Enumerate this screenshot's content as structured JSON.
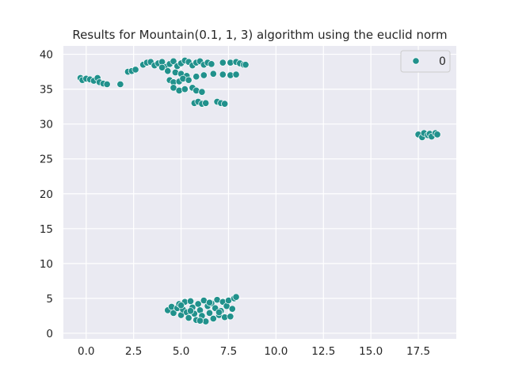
{
  "chart_data": {
    "type": "scatter",
    "title": "Results for Mountain(0.1, 1, 3) algorithm using the euclid norm",
    "xlabel": "",
    "ylabel": "",
    "xlim": [
      -1.2,
      19.5
    ],
    "ylim": [
      -0.8,
      41.2
    ],
    "xticks": [
      0.0,
      2.5,
      5.0,
      7.5,
      10.0,
      12.5,
      15.0,
      17.5
    ],
    "xtick_labels": [
      "0.0",
      "2.5",
      "5.0",
      "7.5",
      "10.0",
      "12.5",
      "15.0",
      "17.5"
    ],
    "yticks": [
      0,
      5,
      10,
      15,
      20,
      25,
      30,
      35,
      40
    ],
    "ytick_labels": [
      "0",
      "5",
      "10",
      "15",
      "20",
      "25",
      "30",
      "35",
      "40"
    ],
    "grid": true,
    "legend": {
      "placement": "top-right",
      "entries": [
        "0"
      ]
    },
    "series": [
      {
        "name": "0",
        "color": "#21918c",
        "points": [
          [
            -0.3,
            36.6
          ],
          [
            -0.2,
            36.3
          ],
          [
            0.0,
            36.5
          ],
          [
            0.2,
            36.4
          ],
          [
            0.4,
            36.2
          ],
          [
            0.6,
            36.6
          ],
          [
            0.7,
            36.0
          ],
          [
            0.9,
            35.8
          ],
          [
            1.1,
            35.7
          ],
          [
            1.8,
            35.7
          ],
          [
            2.2,
            37.5
          ],
          [
            2.4,
            37.6
          ],
          [
            2.6,
            37.8
          ],
          [
            3.0,
            38.5
          ],
          [
            3.2,
            38.8
          ],
          [
            3.4,
            38.9
          ],
          [
            3.6,
            38.4
          ],
          [
            3.8,
            38.7
          ],
          [
            4.0,
            38.9
          ],
          [
            4.2,
            38.2
          ],
          [
            4.4,
            38.6
          ],
          [
            4.6,
            39.0
          ],
          [
            4.8,
            38.3
          ],
          [
            5.0,
            38.7
          ],
          [
            5.2,
            39.1
          ],
          [
            5.4,
            38.9
          ],
          [
            5.6,
            38.4
          ],
          [
            5.8,
            38.8
          ],
          [
            6.0,
            39.0
          ],
          [
            6.2,
            38.5
          ],
          [
            6.4,
            38.8
          ],
          [
            6.6,
            38.6
          ],
          [
            7.2,
            38.8
          ],
          [
            7.6,
            38.8
          ],
          [
            7.9,
            38.9
          ],
          [
            8.1,
            38.7
          ],
          [
            8.3,
            38.5
          ],
          [
            8.4,
            38.5
          ],
          [
            4.0,
            38.1
          ],
          [
            4.3,
            37.6
          ],
          [
            4.7,
            37.4
          ],
          [
            5.0,
            37.2
          ],
          [
            5.3,
            36.9
          ],
          [
            5.8,
            36.8
          ],
          [
            6.2,
            37.0
          ],
          [
            6.7,
            37.2
          ],
          [
            7.2,
            37.1
          ],
          [
            7.6,
            37.0
          ],
          [
            7.9,
            37.1
          ],
          [
            4.4,
            36.3
          ],
          [
            4.6,
            36.0
          ],
          [
            4.9,
            36.1
          ],
          [
            5.1,
            36.5
          ],
          [
            5.4,
            36.3
          ],
          [
            4.6,
            35.2
          ],
          [
            4.9,
            34.8
          ],
          [
            5.2,
            35.0
          ],
          [
            5.6,
            35.2
          ],
          [
            5.8,
            34.8
          ],
          [
            6.1,
            34.6
          ],
          [
            5.7,
            33.0
          ],
          [
            5.9,
            33.2
          ],
          [
            6.1,
            32.9
          ],
          [
            6.3,
            33.0
          ],
          [
            6.9,
            33.2
          ],
          [
            7.1,
            33.0
          ],
          [
            7.3,
            32.9
          ],
          [
            17.5,
            28.5
          ],
          [
            17.7,
            28.1
          ],
          [
            17.8,
            28.7
          ],
          [
            18.0,
            28.4
          ],
          [
            18.1,
            28.6
          ],
          [
            18.2,
            28.2
          ],
          [
            18.4,
            28.7
          ],
          [
            18.5,
            28.5
          ],
          [
            4.3,
            3.3
          ],
          [
            4.5,
            3.8
          ],
          [
            4.6,
            2.9
          ],
          [
            4.8,
            3.6
          ],
          [
            4.9,
            4.2
          ],
          [
            5.0,
            2.6
          ],
          [
            5.1,
            3.4
          ],
          [
            5.2,
            4.5
          ],
          [
            5.3,
            3.0
          ],
          [
            5.4,
            2.2
          ],
          [
            5.5,
            4.6
          ],
          [
            5.6,
            3.7
          ],
          [
            5.7,
            2.8
          ],
          [
            5.8,
            1.9
          ],
          [
            5.9,
            4.2
          ],
          [
            6.0,
            3.3
          ],
          [
            6.1,
            2.5
          ],
          [
            6.2,
            4.7
          ],
          [
            6.3,
            1.7
          ],
          [
            6.4,
            3.9
          ],
          [
            6.5,
            2.9
          ],
          [
            6.6,
            4.3
          ],
          [
            6.7,
            2.1
          ],
          [
            6.8,
            3.6
          ],
          [
            6.9,
            4.8
          ],
          [
            7.0,
            2.6
          ],
          [
            7.1,
            3.2
          ],
          [
            7.2,
            4.5
          ],
          [
            7.3,
            2.3
          ],
          [
            7.4,
            3.9
          ],
          [
            7.5,
            4.7
          ],
          [
            7.6,
            2.4
          ],
          [
            7.7,
            3.5
          ],
          [
            7.8,
            5.0
          ],
          [
            7.9,
            5.2
          ],
          [
            5.0,
            4.0
          ],
          [
            5.5,
            3.2
          ],
          [
            6.0,
            1.8
          ],
          [
            6.5,
            4.4
          ],
          [
            7.0,
            3.0
          ]
        ]
      }
    ]
  }
}
